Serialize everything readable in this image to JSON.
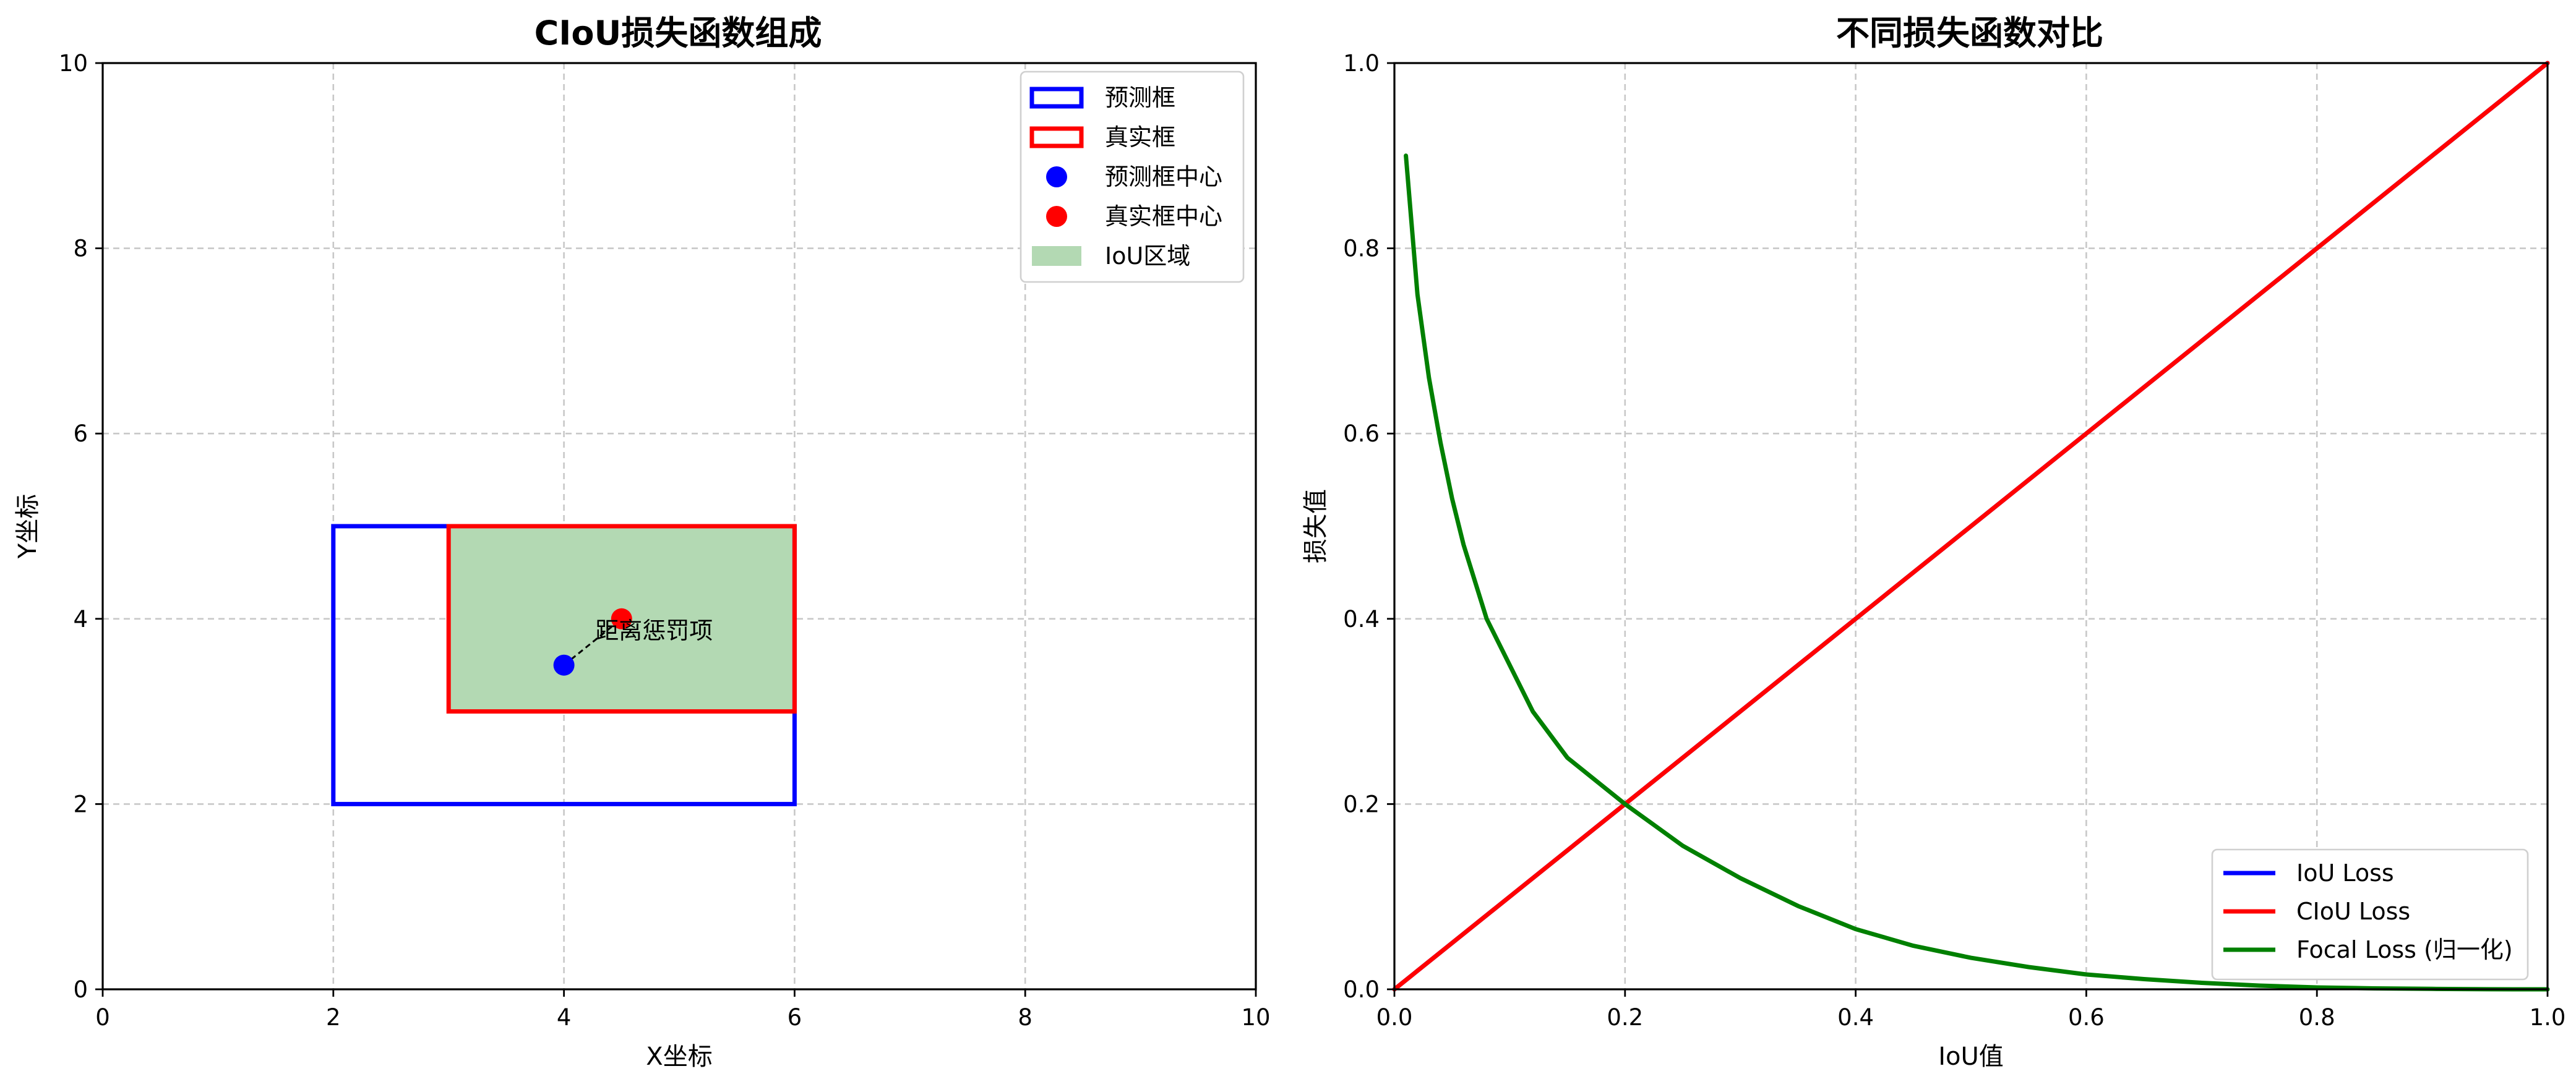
{
  "chart_data": [
    {
      "type": "diagram",
      "title": "CIoU损失函数组成",
      "xlabel": "X坐标",
      "ylabel": "Y坐标",
      "xlim": [
        0,
        10
      ],
      "ylim": [
        0,
        10
      ],
      "xticks": [
        0,
        2,
        4,
        6,
        8,
        10
      ],
      "yticks": [
        0,
        2,
        4,
        6,
        8,
        10
      ],
      "grid": true,
      "legend_position": "top-right",
      "pred_box": {
        "x1": 2,
        "y1": 2,
        "x2": 6,
        "y2": 5,
        "color": "#0000ff"
      },
      "true_box": {
        "x1": 3,
        "y1": 3,
        "x2": 6,
        "y2": 5,
        "color": "#ff0000"
      },
      "iou_region": {
        "x1": 3,
        "y1": 3,
        "x2": 6,
        "y2": 5,
        "color": "#b3d9b3"
      },
      "pred_center": {
        "x": 4,
        "y": 3.5,
        "color": "#0000ff"
      },
      "true_center": {
        "x": 4.5,
        "y": 4,
        "color": "#ff0000"
      },
      "annotation": {
        "text": "距离惩罚项",
        "x": 4.25,
        "y": 3.88
      },
      "legend": [
        {
          "label": "预测框",
          "kind": "rect",
          "color": "#0000ff"
        },
        {
          "label": "真实框",
          "kind": "rect",
          "color": "#ff0000"
        },
        {
          "label": "预测框中心",
          "kind": "dot",
          "color": "#0000ff"
        },
        {
          "label": "真实框中心",
          "kind": "dot",
          "color": "#ff0000"
        },
        {
          "label": "IoU区域",
          "kind": "patch",
          "color": "#b3d9b3"
        }
      ]
    },
    {
      "type": "line",
      "title": "不同损失函数对比",
      "xlabel": "IoU值",
      "ylabel": "损失值",
      "xlim": [
        0,
        1
      ],
      "ylim": [
        0,
        1
      ],
      "xticks": [
        0.0,
        0.2,
        0.4,
        0.6,
        0.8,
        1.0
      ],
      "yticks": [
        0.0,
        0.2,
        0.4,
        0.6,
        0.8,
        1.0
      ],
      "grid": true,
      "legend_position": "lower-right",
      "series": [
        {
          "name": "IoU Loss",
          "color": "#0000ff",
          "x": [
            0.0,
            0.2,
            0.4,
            0.6,
            0.8,
            1.0
          ],
          "y": [
            0.0,
            0.2,
            0.4,
            0.6,
            0.8,
            1.0
          ]
        },
        {
          "name": "CIoU Loss",
          "color": "#ff0000",
          "x": [
            0.0,
            0.2,
            0.4,
            0.6,
            0.8,
            1.0
          ],
          "y": [
            0.0,
            0.2,
            0.4,
            0.6,
            0.8,
            1.0
          ]
        },
        {
          "name": "Focal Loss (归一化)",
          "color": "#008000",
          "x": [
            0.01,
            0.02,
            0.03,
            0.04,
            0.05,
            0.06,
            0.08,
            0.1,
            0.12,
            0.15,
            0.2,
            0.25,
            0.3,
            0.35,
            0.4,
            0.45,
            0.5,
            0.55,
            0.6,
            0.65,
            0.7,
            0.75,
            0.8,
            0.85,
            0.9,
            0.95,
            1.0
          ],
          "y": [
            0.9,
            0.75,
            0.66,
            0.59,
            0.53,
            0.48,
            0.4,
            0.35,
            0.3,
            0.25,
            0.2,
            0.155,
            0.12,
            0.09,
            0.065,
            0.047,
            0.034,
            0.024,
            0.016,
            0.011,
            0.007,
            0.004,
            0.002,
            0.001,
            0.0005,
            0.0001,
            0.0
          ]
        }
      ],
      "legend": [
        {
          "label": "IoU Loss",
          "color": "#0000ff"
        },
        {
          "label": "CIoU Loss",
          "color": "#ff0000"
        },
        {
          "label": "Focal Loss (归一化)",
          "color": "#008000"
        }
      ]
    }
  ]
}
